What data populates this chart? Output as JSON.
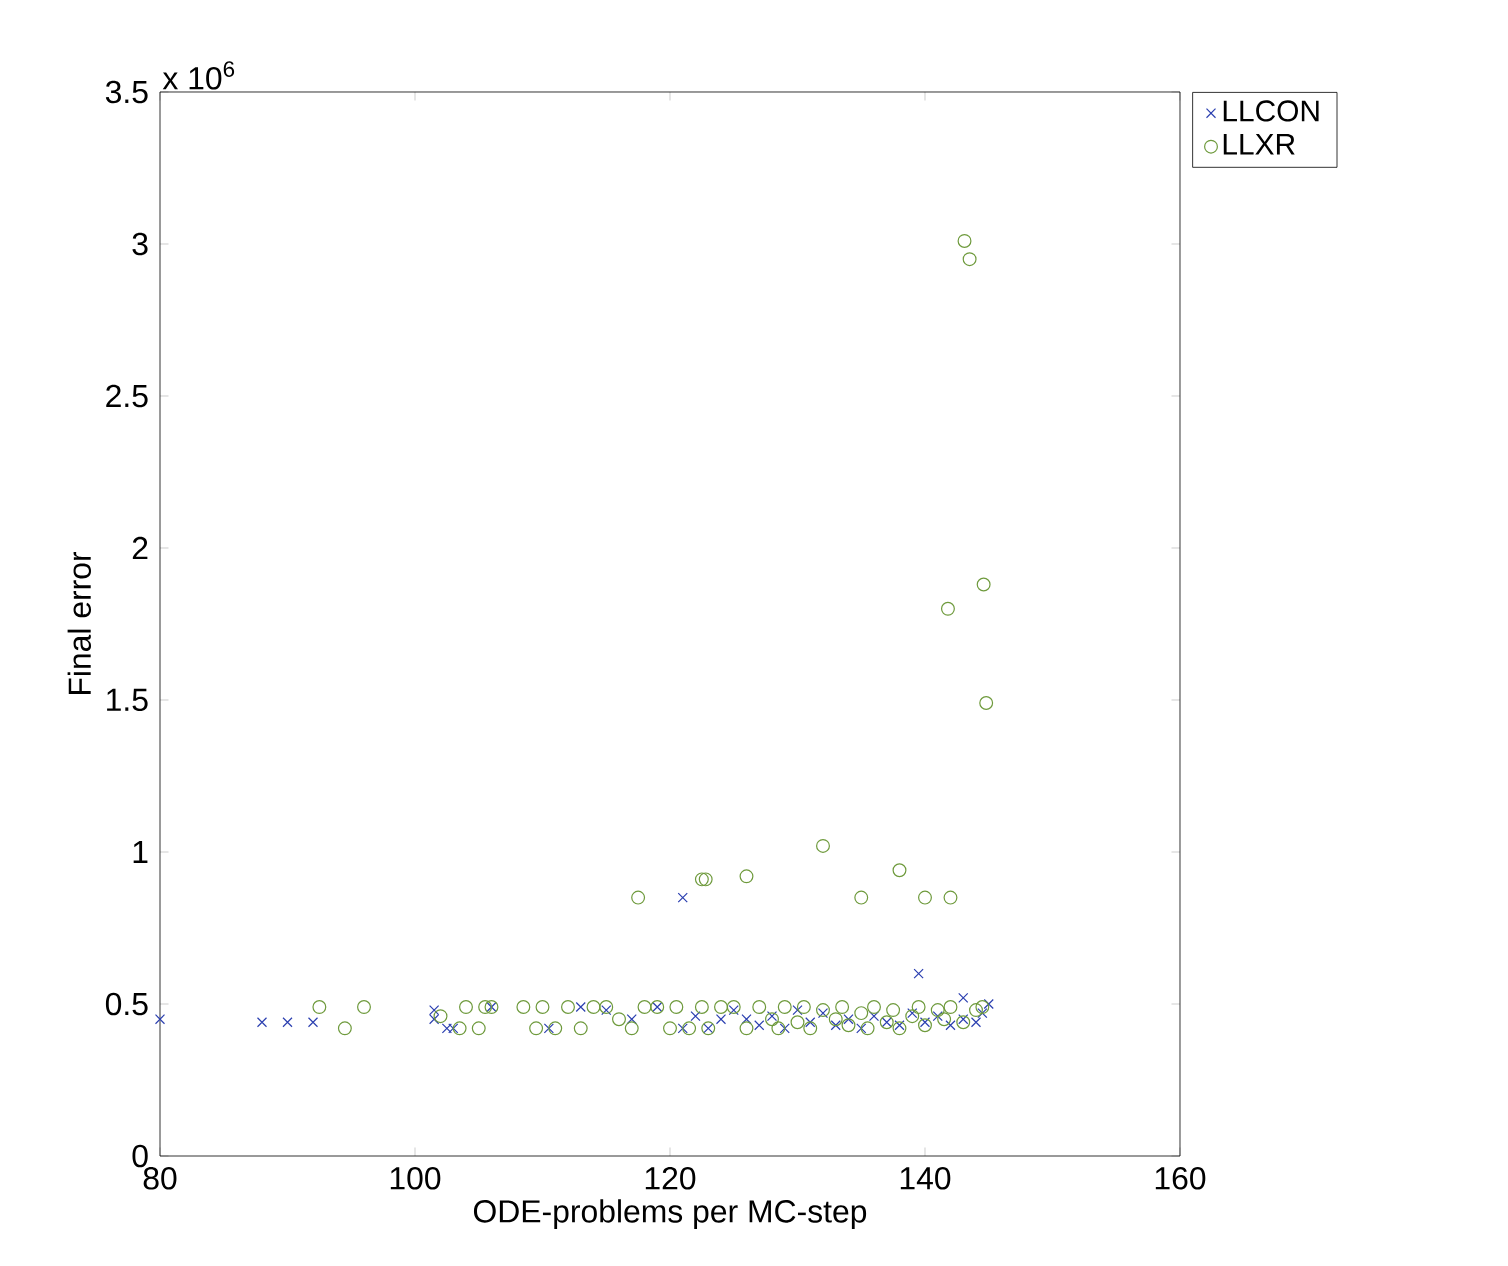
{
  "chart_data": {
    "type": "scatter",
    "xlabel": "ODE-problems per MC-step",
    "ylabel": "Final error",
    "annotations": [
      "x 10$^{6}$"
    ],
    "xlim": [
      80,
      160
    ],
    "ylim": [
      0,
      3.5
    ],
    "xticks": [
      80,
      100,
      120,
      140,
      160
    ],
    "yticks": [
      0,
      0.5,
      1,
      1.5,
      2,
      2.5,
      3,
      3.5
    ],
    "grid": false,
    "legend": "top right",
    "series": [
      {
        "name": "LLCON",
        "color": "#2b3fb0",
        "marker": "cross",
        "x": [
          80,
          88,
          90,
          92,
          101.5,
          101.5,
          102.5,
          103,
          106,
          110.5,
          113,
          115,
          117,
          119,
          121,
          121,
          122,
          123,
          124,
          125,
          126,
          127,
          128,
          129,
          130,
          131,
          132,
          133,
          134,
          135,
          136,
          137,
          138,
          139,
          139.5,
          140,
          141,
          142,
          143,
          143,
          144,
          144.5,
          145
        ],
        "values": [
          0.45,
          0.44,
          0.44,
          0.44,
          0.48,
          0.45,
          0.42,
          0.42,
          0.49,
          0.42,
          0.49,
          0.48,
          0.45,
          0.49,
          0.42,
          0.85,
          0.46,
          0.42,
          0.45,
          0.48,
          0.45,
          0.43,
          0.46,
          0.42,
          0.48,
          0.44,
          0.47,
          0.43,
          0.45,
          0.42,
          0.46,
          0.44,
          0.43,
          0.47,
          0.6,
          0.44,
          0.46,
          0.43,
          0.52,
          0.45,
          0.44,
          0.47,
          0.5
        ]
      },
      {
        "name": "LLXR",
        "color": "#6e9a3c",
        "marker": "circle",
        "x": [
          92.5,
          94.5,
          96,
          102,
          103.5,
          104,
          105,
          105.5,
          106,
          108.5,
          109.5,
          110,
          111,
          112,
          113,
          114,
          115,
          116,
          117,
          118,
          119,
          120,
          120.5,
          121.5,
          122.5,
          123,
          124,
          125,
          126,
          127,
          128,
          128.5,
          129,
          130,
          130.5,
          131,
          132,
          133,
          133.5,
          134,
          135,
          135.5,
          136,
          137,
          137.5,
          138,
          139,
          139.5,
          140,
          141,
          141.5,
          142,
          143,
          144,
          144.5,
          117.5,
          122.5,
          122.8,
          126,
          132,
          135,
          138,
          140,
          142,
          143.1,
          143.5,
          141.8,
          144.6,
          144.8
        ],
        "values": [
          0.49,
          0.42,
          0.49,
          0.46,
          0.42,
          0.49,
          0.42,
          0.49,
          0.49,
          0.49,
          0.42,
          0.49,
          0.42,
          0.49,
          0.42,
          0.49,
          0.49,
          0.45,
          0.42,
          0.49,
          0.49,
          0.42,
          0.49,
          0.42,
          0.49,
          0.42,
          0.49,
          0.49,
          0.42,
          0.49,
          0.45,
          0.42,
          0.49,
          0.44,
          0.49,
          0.42,
          0.48,
          0.45,
          0.49,
          0.43,
          0.47,
          0.42,
          0.49,
          0.44,
          0.48,
          0.42,
          0.46,
          0.49,
          0.43,
          0.48,
          0.45,
          0.49,
          0.44,
          0.48,
          0.49,
          0.85,
          0.91,
          0.91,
          0.92,
          1.02,
          0.85,
          0.94,
          0.85,
          0.85,
          3.01,
          2.95,
          1.8,
          1.88,
          1.49
        ]
      }
    ]
  }
}
